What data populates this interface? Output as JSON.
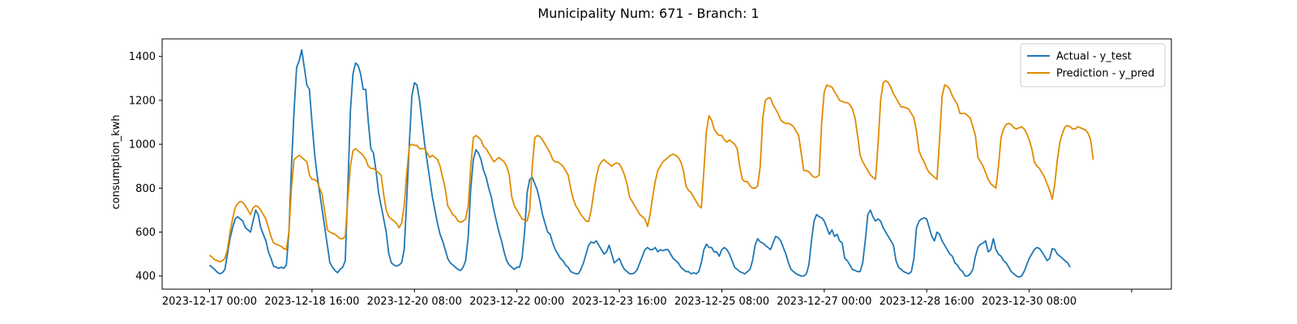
{
  "chart_data": {
    "type": "line",
    "title": "Municipality Num: 671 - Branch: 1",
    "xlabel": "",
    "ylabel": "consumption_kwh",
    "ylim": [
      340,
      1480
    ],
    "yticks": [
      400,
      600,
      800,
      1000,
      1200,
      1400
    ],
    "xticks": [
      {
        "pos": 0,
        "label": "2023-12-17 00:00"
      },
      {
        "pos": 40,
        "label": "2023-12-18 16:00"
      },
      {
        "pos": 80,
        "label": "2023-12-20 08:00"
      },
      {
        "pos": 120,
        "label": "2023-12-22 00:00"
      },
      {
        "pos": 160,
        "label": "2023-12-23 16:00"
      },
      {
        "pos": 200,
        "label": "2023-12-25 08:00"
      },
      {
        "pos": 240,
        "label": "2023-12-27 00:00"
      },
      {
        "pos": 280,
        "label": "2023-12-28 16:00"
      },
      {
        "pos": 320,
        "label": "2023-12-30 08:00"
      },
      {
        "pos": 360,
        "label": ""
      }
    ],
    "xlim": [
      -18.5,
      375.5
    ],
    "x_step": 1,
    "grid": false,
    "legend_position": "top-right",
    "series": [
      {
        "name": "Actual - y_test",
        "color": "#1f77b4",
        "values": [
          450,
          440,
          430,
          418,
          410,
          415,
          430,
          500,
          570,
          620,
          660,
          670,
          660,
          650,
          620,
          610,
          600,
          650,
          700,
          680,
          620,
          590,
          560,
          510,
          480,
          445,
          440,
          435,
          440,
          435,
          450,
          600,
          900,
          1150,
          1350,
          1380,
          1430,
          1350,
          1270,
          1250,
          1100,
          960,
          860,
          780,
          700,
          620,
          540,
          460,
          440,
          425,
          415,
          430,
          440,
          470,
          800,
          1150,
          1320,
          1370,
          1360,
          1320,
          1250,
          1250,
          1100,
          980,
          960,
          880,
          780,
          720,
          660,
          600,
          500,
          460,
          450,
          445,
          450,
          460,
          520,
          750,
          1000,
          1220,
          1280,
          1270,
          1200,
          1100,
          1000,
          920,
          840,
          760,
          700,
          640,
          590,
          560,
          520,
          480,
          460,
          450,
          440,
          430,
          425,
          440,
          470,
          580,
          800,
          930,
          975,
          960,
          930,
          880,
          850,
          800,
          760,
          700,
          650,
          600,
          560,
          510,
          470,
          450,
          440,
          430,
          440,
          440,
          480,
          600,
          780,
          840,
          850,
          820,
          790,
          740,
          680,
          640,
          600,
          590,
          550,
          520,
          500,
          480,
          470,
          450,
          440,
          420,
          415,
          410,
          410,
          430,
          460,
          500,
          540,
          555,
          550,
          560,
          540,
          520,
          500,
          510,
          540,
          500,
          460,
          470,
          480,
          450,
          430,
          420,
          410,
          410,
          415,
          430,
          460,
          490,
          520,
          530,
          520,
          520,
          530,
          510,
          520,
          515,
          520,
          520,
          500,
          480,
          470,
          460,
          440,
          430,
          420,
          420,
          410,
          415,
          410,
          420,
          460,
          520,
          545,
          530,
          530,
          510,
          510,
          490,
          520,
          530,
          520,
          500,
          470,
          440,
          430,
          420,
          415,
          410,
          420,
          430,
          470,
          540,
          570,
          555,
          550,
          540,
          530,
          520,
          550,
          580,
          575,
          560,
          530,
          500,
          460,
          430,
          420,
          410,
          405,
          400,
          400,
          410,
          450,
          560,
          650,
          680,
          670,
          665,
          650,
          620,
          590,
          610,
          580,
          590,
          560,
          550,
          480,
          470,
          450,
          430,
          425,
          420,
          420,
          460,
          560,
          680,
          700,
          670,
          650,
          660,
          650,
          620,
          600,
          580,
          560,
          540,
          470,
          440,
          430,
          420,
          415,
          410,
          420,
          480,
          620,
          650,
          660,
          665,
          660,
          620,
          580,
          560,
          600,
          590,
          560,
          540,
          520,
          500,
          490,
          460,
          450,
          430,
          420,
          400,
          400,
          410,
          430,
          490,
          530,
          545,
          550,
          560,
          510,
          520,
          570,
          520,
          500,
          490,
          470,
          460,
          440,
          420,
          410,
          400,
          395,
          400,
          420,
          450,
          480,
          500,
          520,
          530,
          525,
          510,
          490,
          470,
          480,
          525,
          520,
          500,
          490,
          480,
          470,
          460,
          440
        ]
      },
      {
        "name": "Prediction - y_pred",
        "color": "#e08b00",
        "values": [
          495,
          485,
          475,
          470,
          465,
          470,
          480,
          520,
          600,
          660,
          710,
          730,
          740,
          735,
          720,
          700,
          680,
          710,
          720,
          715,
          700,
          680,
          660,
          620,
          580,
          550,
          545,
          540,
          535,
          525,
          520,
          600,
          800,
          930,
          940,
          950,
          940,
          930,
          920,
          860,
          840,
          840,
          830,
          800,
          770,
          690,
          610,
          600,
          595,
          590,
          580,
          570,
          570,
          580,
          750,
          900,
          970,
          980,
          970,
          960,
          950,
          930,
          900,
          890,
          890,
          880,
          870,
          860,
          770,
          700,
          670,
          660,
          650,
          640,
          620,
          640,
          720,
          870,
          990,
          1000,
          995,
          995,
          980,
          980,
          980,
          960,
          940,
          950,
          940,
          930,
          900,
          850,
          800,
          720,
          700,
          680,
          670,
          650,
          645,
          650,
          660,
          720,
          900,
          1030,
          1040,
          1030,
          1020,
          990,
          980,
          960,
          940,
          920,
          930,
          940,
          930,
          920,
          900,
          860,
          760,
          720,
          700,
          680,
          660,
          655,
          650,
          700,
          900,
          1030,
          1040,
          1035,
          1020,
          1000,
          980,
          960,
          930,
          920,
          920,
          910,
          900,
          880,
          860,
          800,
          750,
          720,
          700,
          680,
          665,
          650,
          648,
          700,
          780,
          850,
          900,
          920,
          930,
          920,
          910,
          900,
          910,
          915,
          910,
          890,
          860,
          820,
          760,
          740,
          720,
          700,
          680,
          670,
          660,
          625,
          680,
          760,
          830,
          880,
          900,
          920,
          930,
          940,
          950,
          955,
          950,
          940,
          920,
          880,
          810,
          790,
          780,
          760,
          740,
          720,
          710,
          880,
          1060,
          1130,
          1110,
          1070,
          1050,
          1040,
          1040,
          1020,
          1010,
          1020,
          1010,
          1000,
          980,
          900,
          840,
          830,
          830,
          810,
          800,
          800,
          810,
          900,
          1120,
          1200,
          1210,
          1210,
          1180,
          1160,
          1140,
          1110,
          1100,
          1095,
          1095,
          1090,
          1080,
          1060,
          1040,
          960,
          880,
          880,
          875,
          860,
          850,
          850,
          860,
          1100,
          1240,
          1270,
          1265,
          1260,
          1240,
          1220,
          1200,
          1195,
          1190,
          1190,
          1180,
          1160,
          1120,
          1040,
          950,
          920,
          900,
          880,
          860,
          850,
          840,
          1000,
          1200,
          1280,
          1290,
          1280,
          1260,
          1230,
          1210,
          1190,
          1170,
          1170,
          1165,
          1160,
          1140,
          1120,
          1060,
          970,
          940,
          920,
          890,
          870,
          860,
          850,
          840,
          1020,
          1220,
          1270,
          1265,
          1250,
          1220,
          1200,
          1180,
          1140,
          1140,
          1140,
          1130,
          1120,
          1080,
          1040,
          940,
          920,
          900,
          870,
          840,
          820,
          810,
          800,
          900,
          1030,
          1070,
          1090,
          1095,
          1090,
          1075,
          1070,
          1075,
          1080,
          1070,
          1050,
          1020,
          980,
          920,
          900,
          890,
          870,
          850,
          820,
          790,
          750,
          820,
          930,
          1010,
          1050,
          1080,
          1085,
          1080,
          1070,
          1070,
          1080,
          1075,
          1070,
          1065,
          1050,
          1020,
          930
        ]
      }
    ]
  }
}
